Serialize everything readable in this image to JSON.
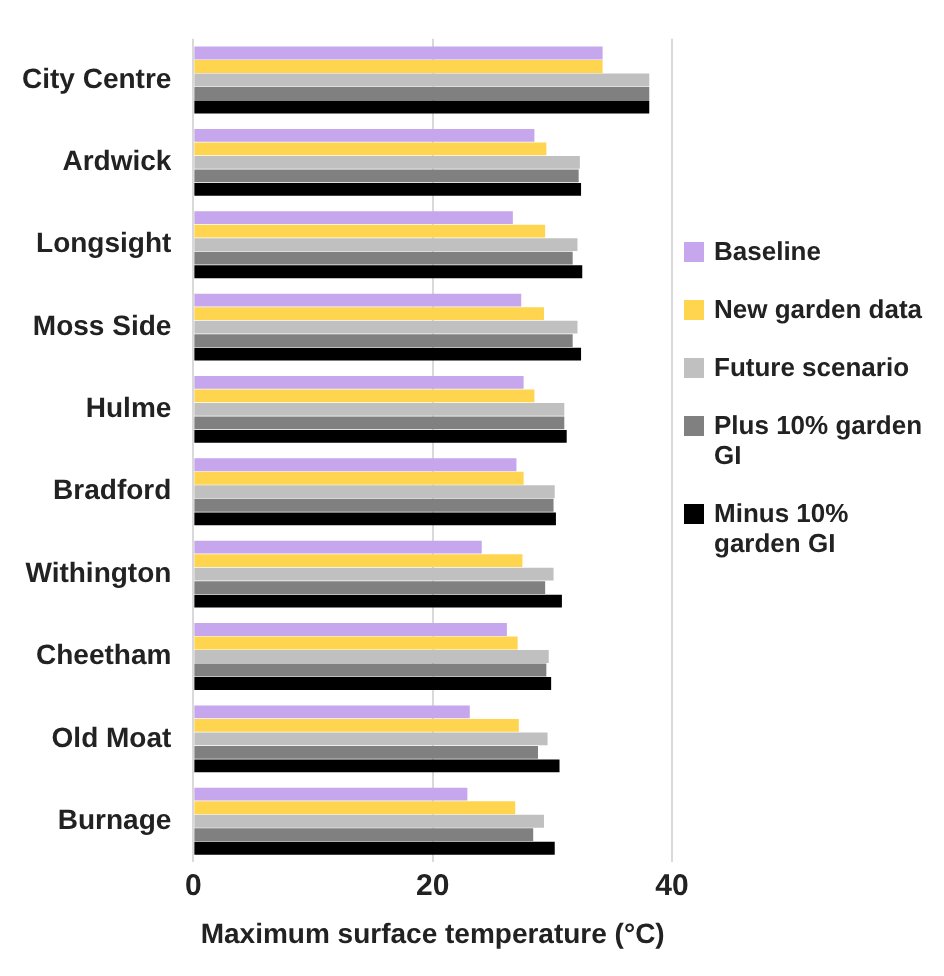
{
  "chart_data": {
    "type": "bar",
    "orientation": "horizontal",
    "xlabel": "Maximum surface temperature (°C)",
    "categories": [
      "City Centre",
      "Ardwick",
      "Longsight",
      "Moss Side",
      "Hulme",
      "Bradford",
      "Withington",
      "Cheetham",
      "Old Moat",
      "Burnage"
    ],
    "series": [
      {
        "name": "Baseline",
        "color": "#c6a6ec",
        "values": [
          34.2,
          28.5,
          26.7,
          27.4,
          27.6,
          27.0,
          24.1,
          26.2,
          23.1,
          22.9
        ]
      },
      {
        "name": "New garden data",
        "color": "#ffd44f",
        "values": [
          34.2,
          29.5,
          29.4,
          29.3,
          28.5,
          27.6,
          27.5,
          27.1,
          27.2,
          26.9
        ]
      },
      {
        "name": "Future scenario",
        "color": "#c0c0c0",
        "values": [
          38.1,
          32.3,
          32.1,
          32.1,
          31.0,
          30.2,
          30.1,
          29.7,
          29.6,
          29.3
        ]
      },
      {
        "name": "Plus 10% garden GI",
        "color": "#808080",
        "values": [
          38.1,
          32.2,
          31.7,
          31.7,
          31.0,
          30.1,
          29.4,
          29.5,
          28.8,
          28.4
        ]
      },
      {
        "name": "Minus 10% garden GI",
        "color": "#000000",
        "values": [
          38.1,
          32.4,
          32.5,
          32.4,
          31.2,
          30.3,
          30.8,
          29.9,
          30.6,
          30.2
        ]
      }
    ],
    "xlim": [
      0,
      40
    ],
    "xticks": [
      0,
      20,
      40
    ],
    "grid": "x",
    "legend": "right"
  }
}
